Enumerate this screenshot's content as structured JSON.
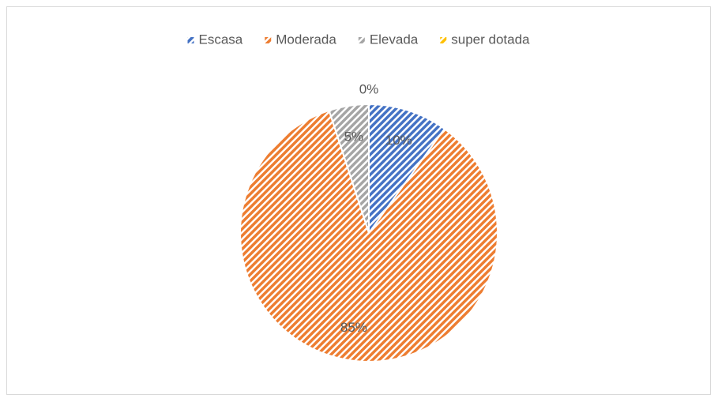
{
  "chart_data": {
    "type": "pie",
    "categories": [
      "Escasa",
      "Moderada",
      "Elevada",
      "super dotada"
    ],
    "values": [
      10,
      85,
      5,
      0
    ],
    "value_labels": [
      "10%",
      "85%",
      "5%",
      "0%"
    ],
    "colors": [
      "#4472c4",
      "#ed7d31",
      "#a5a5a5",
      "#ffc000"
    ],
    "legend": "top"
  }
}
